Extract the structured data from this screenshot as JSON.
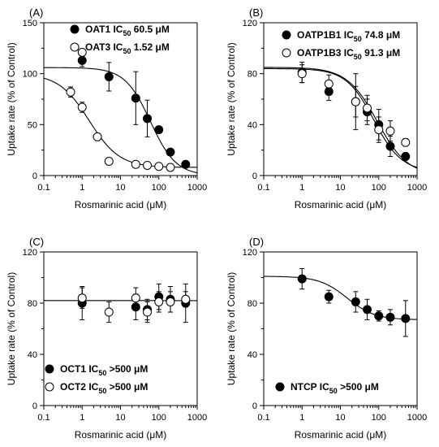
{
  "chart_data": [
    {
      "type": "scatter",
      "panel_label": "(A)",
      "xlabel": "Rosmarinic acid (μM)",
      "ylabel": "Uptake rate (% of Control)",
      "x_scale": "log",
      "xlim": [
        0.1,
        1000
      ],
      "ylim": [
        0,
        150
      ],
      "x_ticks": [
        "0.1",
        "1",
        "10",
        "100",
        "1000"
      ],
      "y_ticks": [
        "0",
        "50",
        "100",
        "150"
      ],
      "legend_position": "top-right",
      "series": [
        {
          "name": "OAT1",
          "ic50_text": "60.5 μM",
          "marker": "filled",
          "fit": {
            "top": 106,
            "bottom": 0,
            "ic50": 60.5,
            "hill": 1.3
          },
          "points": [
            {
              "x": 1,
              "y": 113,
              "err": 6
            },
            {
              "x": 5,
              "y": 97,
              "err": 14
            },
            {
              "x": 25,
              "y": 76,
              "err": 26
            },
            {
              "x": 50,
              "y": 56,
              "err": 18
            },
            {
              "x": 100,
              "y": 45,
              "err": 3
            },
            {
              "x": 200,
              "y": 23,
              "err": 3
            },
            {
              "x": 500,
              "y": 11,
              "err": 2
            }
          ]
        },
        {
          "name": "OAT3",
          "ic50_text": "1.52 μM",
          "marker": "open",
          "fit": {
            "top": 100,
            "bottom": 8,
            "ic50": 1.52,
            "hill": 1.1
          },
          "points": [
            {
              "x": 0.5,
              "y": 82,
              "err": 5
            },
            {
              "x": 1,
              "y": 121,
              "err": 0
            },
            {
              "x": 1,
              "y": 67,
              "err": 5
            },
            {
              "x": 2.5,
              "y": 38,
              "err": 3
            },
            {
              "x": 5,
              "y": 14,
              "err": 2
            },
            {
              "x": 25,
              "y": 11,
              "err": 2
            },
            {
              "x": 50,
              "y": 10,
              "err": 2
            },
            {
              "x": 100,
              "y": 9,
              "err": 2
            },
            {
              "x": 200,
              "y": 8,
              "err": 2
            }
          ]
        }
      ]
    },
    {
      "type": "scatter",
      "panel_label": "(B)",
      "xlabel": "Rosmarinic acid (μM)",
      "ylabel": "Uptake rate (% of Control)",
      "x_scale": "log",
      "xlim": [
        0.1,
        1000
      ],
      "ylim": [
        0,
        120
      ],
      "x_ticks": [
        "0.1",
        "1",
        "10",
        "100",
        "1000"
      ],
      "y_ticks": [
        "0",
        "40",
        "80",
        "120"
      ],
      "legend_position": "top-right",
      "series": [
        {
          "name": "OATP1B1",
          "ic50_text": "74.8 μM",
          "marker": "filled",
          "fit": {
            "top": 84,
            "bottom": 3,
            "ic50": 74.8,
            "hill": 1.2
          },
          "points": [
            {
              "x": 1,
              "y": 81,
              "err": 8
            },
            {
              "x": 5,
              "y": 66,
              "err": 7
            },
            {
              "x": 25,
              "y": 58,
              "err": 22
            },
            {
              "x": 50,
              "y": 50,
              "err": 10
            },
            {
              "x": 100,
              "y": 40,
              "err": 12
            },
            {
              "x": 200,
              "y": 23,
              "err": 8
            },
            {
              "x": 500,
              "y": 15,
              "err": 3
            }
          ]
        },
        {
          "name": "OATP1B3",
          "ic50_text": "91.3 μM",
          "marker": "open",
          "fit": {
            "top": 85,
            "bottom": 0,
            "ic50": 91.3,
            "hill": 1.1
          },
          "points": [
            {
              "x": 1,
              "y": 80,
              "err": 7
            },
            {
              "x": 5,
              "y": 72,
              "err": 7
            },
            {
              "x": 25,
              "y": 58,
              "err": 12
            },
            {
              "x": 50,
              "y": 53,
              "err": 10
            },
            {
              "x": 100,
              "y": 36,
              "err": 10
            },
            {
              "x": 200,
              "y": 35,
              "err": 8
            },
            {
              "x": 500,
              "y": 26,
              "err": 3
            }
          ]
        }
      ]
    },
    {
      "type": "scatter",
      "panel_label": "(C)",
      "xlabel": "Rosmarinic acid (μM)",
      "ylabel": "Uptake rate (% of Control)",
      "x_scale": "log",
      "xlim": [
        0.1,
        1000
      ],
      "ylim": [
        0,
        120
      ],
      "x_ticks": [
        "0.1",
        "1",
        "10",
        "100",
        "1000"
      ],
      "y_ticks": [
        "0",
        "40",
        "80",
        "120"
      ],
      "legend_position": "bottom-left",
      "series": [
        {
          "name": "OCT1",
          "ic50_text": ">500 μM",
          "marker": "filled",
          "fit": {
            "top": 82,
            "bottom": 0,
            "ic50": 1000000,
            "hill": 1
          },
          "points": [
            {
              "x": 1,
              "y": 80,
              "err": 13
            },
            {
              "x": 25,
              "y": 77,
              "err": 10
            },
            {
              "x": 50,
              "y": 75,
              "err": 8
            },
            {
              "x": 100,
              "y": 85,
              "err": 10
            },
            {
              "x": 200,
              "y": 83,
              "err": 10
            },
            {
              "x": 500,
              "y": 80,
              "err": 15
            }
          ]
        },
        {
          "name": "OCT2",
          "ic50_text": ">500 μM",
          "marker": "open",
          "fit": null,
          "points": [
            {
              "x": 1,
              "y": 84,
              "err": 8
            },
            {
              "x": 5,
              "y": 73,
              "err": 8
            },
            {
              "x": 25,
              "y": 84,
              "err": 8
            },
            {
              "x": 50,
              "y": 73,
              "err": 8
            },
            {
              "x": 100,
              "y": 81,
              "err": 8
            },
            {
              "x": 200,
              "y": 81,
              "err": 8
            },
            {
              "x": 500,
              "y": 83,
              "err": 6
            }
          ]
        }
      ]
    },
    {
      "type": "scatter",
      "panel_label": "(D)",
      "xlabel": "Rosmarinic acid (μM)",
      "ylabel": "Uptake rate (% of Control)",
      "x_scale": "log",
      "xlim": [
        0.1,
        1000
      ],
      "ylim": [
        0,
        120
      ],
      "x_ticks": [
        "0.1",
        "1",
        "10",
        "100",
        "1000"
      ],
      "y_ticks": [
        "0",
        "40",
        "80",
        "120"
      ],
      "legend_position": "bottom-right",
      "series": [
        {
          "name": "NTCP",
          "ic50_text": ">500 μM",
          "marker": "filled",
          "fit": {
            "top": 101,
            "bottom": 67,
            "ic50": 15,
            "hill": 1.2
          },
          "points": [
            {
              "x": 1,
              "y": 99,
              "err": 8
            },
            {
              "x": 5,
              "y": 85,
              "err": 5
            },
            {
              "x": 25,
              "y": 81,
              "err": 8
            },
            {
              "x": 50,
              "y": 75,
              "err": 8
            },
            {
              "x": 100,
              "y": 70,
              "err": 4
            },
            {
              "x": 200,
              "y": 69,
              "err": 6
            },
            {
              "x": 500,
              "y": 68,
              "err": 14
            }
          ]
        }
      ]
    }
  ]
}
